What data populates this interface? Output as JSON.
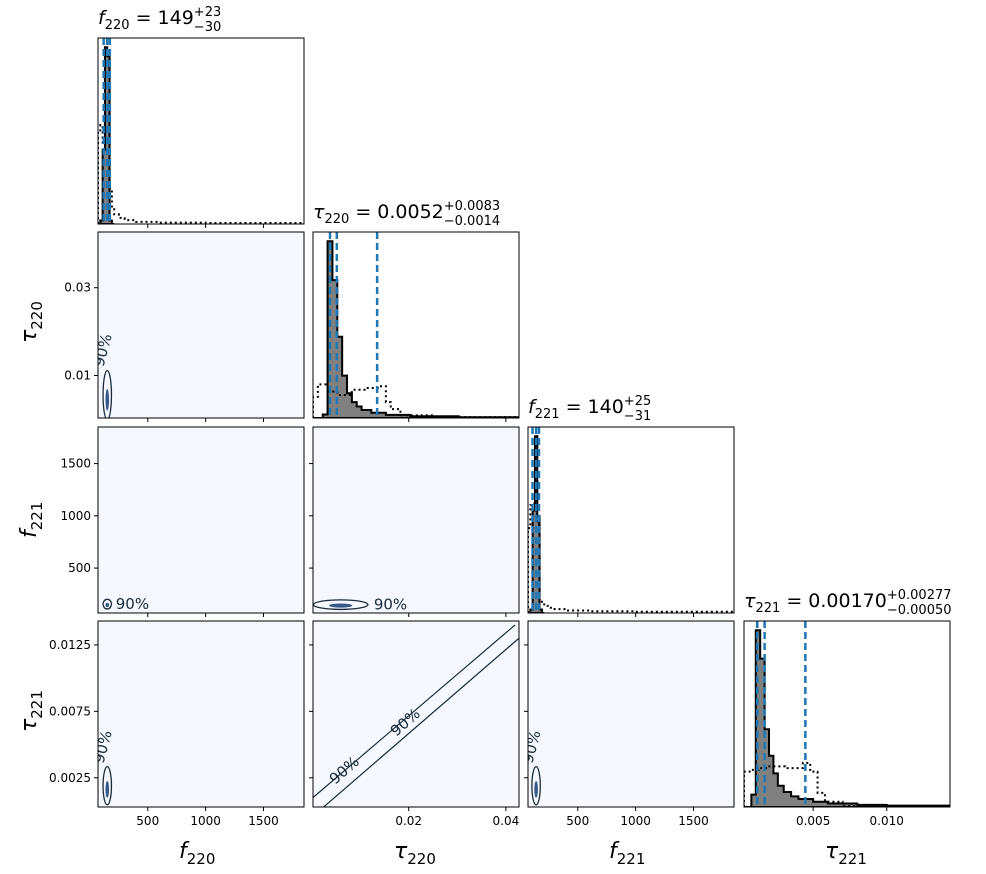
{
  "colors": {
    "hist_fill": "#808080",
    "hist_edge": "#000000",
    "prior": "#000000",
    "quantile": "#1f77b4",
    "panel_bg": "#f5f9ff",
    "contour": "#1a2a3a",
    "contour_fill": "#08306b"
  },
  "chart_data": {
    "type": "corner",
    "parameters": [
      {
        "key": "f220",
        "symbol": "f",
        "subscript": "220",
        "range": [
          70,
          1850
        ],
        "ticks": [
          {
            "v": 500,
            "label": "500"
          },
          {
            "v": 1000,
            "label": "1000"
          },
          {
            "v": 1500,
            "label": "1500"
          }
        ],
        "title": {
          "median": "149",
          "plus": "+23",
          "minus": "−30"
        },
        "quantiles": [
          119,
          149,
          172
        ],
        "posterior_hist": {
          "bin_edges": [
            70,
            90,
            110,
            130,
            150,
            170,
            190,
            210
          ],
          "counts": [
            0,
            0.02,
            0.42,
            1.0,
            0.95,
            0.02,
            0
          ]
        },
        "prior_hist": {
          "bin_edges": [
            70,
            90,
            110,
            130,
            150,
            170,
            190,
            210,
            250,
            300,
            400,
            600,
            1000,
            1850
          ],
          "counts": [
            0.53,
            0.56,
            0.45,
            0.88,
            0.95,
            0.2,
            0.09,
            0.055,
            0.035,
            0.022,
            0.012,
            0.008,
            0.006
          ]
        }
      },
      {
        "key": "tau220",
        "symbol": "τ",
        "subscript": "220",
        "range": [
          0.0003,
          0.0427
        ],
        "ticks": [
          {
            "v": 0.01,
            "label": "0.01"
          },
          {
            "v": 0.03,
            "label": "0.03"
          }
        ],
        "xticks": [
          {
            "v": 0.02,
            "label": "0.02"
          },
          {
            "v": 0.04,
            "label": "0.04"
          }
        ],
        "title": {
          "median": "0.0052",
          "plus": "+0.0083",
          "minus": "−0.0014"
        },
        "quantiles": [
          0.0038,
          0.0052,
          0.0135
        ],
        "posterior_hist": {
          "bin_edges": [
            0.0003,
            0.0023,
            0.0033,
            0.0043,
            0.0053,
            0.0063,
            0.0073,
            0.0083,
            0.0093,
            0.0103,
            0.0123,
            0.0153,
            0.0203,
            0.0303,
            0.0427
          ],
          "counts": [
            0,
            0.02,
            1.0,
            0.78,
            0.46,
            0.24,
            0.14,
            0.09,
            0.065,
            0.045,
            0.03,
            0.018,
            0.01,
            0.004
          ]
        },
        "prior_hist": {
          "bin_edges": [
            0.0003,
            0.0013,
            0.0033,
            0.0053,
            0.0083,
            0.0113,
            0.0143,
            0.0153,
            0.0163,
            0.0183,
            0.0253,
            0.0427
          ],
          "counts": [
            0.12,
            0.19,
            0.15,
            0.13,
            0.16,
            0.17,
            0.18,
            0.09,
            0.05,
            0.015,
            0.005
          ]
        }
      },
      {
        "key": "f221",
        "symbol": "f",
        "subscript": "221",
        "range": [
          70,
          1850
        ],
        "ticks": [
          {
            "v": 500,
            "label": "500"
          },
          {
            "v": 1000,
            "label": "1000"
          },
          {
            "v": 1500,
            "label": "1500"
          }
        ],
        "yticks": [
          {
            "v": 500,
            "label": "500"
          },
          {
            "v": 1000,
            "label": "1000"
          },
          {
            "v": 1500,
            "label": "1500"
          }
        ],
        "title": {
          "median": "140",
          "plus": "+25",
          "minus": "−31"
        },
        "quantiles": [
          109,
          140,
          165
        ],
        "posterior_hist": {
          "bin_edges": [
            70,
            90,
            110,
            130,
            150,
            170,
            190,
            210
          ],
          "counts": [
            0,
            0.02,
            0.58,
            1.0,
            0.55,
            0.02,
            0
          ]
        },
        "prior_hist": {
          "bin_edges": [
            70,
            90,
            110,
            130,
            150,
            170,
            190,
            210,
            250,
            300,
            400,
            600,
            1000,
            1850
          ],
          "counts": [
            0.48,
            0.61,
            0.62,
            1.0,
            0.5,
            0.07,
            0.055,
            0.04,
            0.03,
            0.022,
            0.014,
            0.01,
            0.007
          ]
        }
      },
      {
        "key": "tau221",
        "symbol": "τ",
        "subscript": "221",
        "range": [
          0.0003,
          0.0143
        ],
        "ticks": [
          {
            "v": 0.0025,
            "label": "0.0025"
          },
          {
            "v": 0.0075,
            "label": "0.0075"
          },
          {
            "v": 0.0125,
            "label": "0.0125"
          }
        ],
        "xticks": [
          {
            "v": 0.005,
            "label": "0.005"
          },
          {
            "v": 0.01,
            "label": "0.010"
          }
        ],
        "title": {
          "median": "0.00170",
          "plus": "+0.00277",
          "minus": "−0.00050"
        },
        "quantiles": [
          0.0012,
          0.0017,
          0.00447
        ],
        "posterior_hist": {
          "bin_edges": [
            0.0003,
            0.0008,
            0.0011,
            0.0014,
            0.0017,
            0.002,
            0.0023,
            0.0026,
            0.003,
            0.0035,
            0.004,
            0.005,
            0.006,
            0.008,
            0.01,
            0.0143
          ],
          "counts": [
            0,
            0.07,
            1.0,
            0.84,
            0.44,
            0.29,
            0.19,
            0.12,
            0.085,
            0.06,
            0.045,
            0.03,
            0.02,
            0.012,
            0.008
          ]
        },
        "prior_hist": {
          "bin_edges": [
            0.0003,
            0.0008,
            0.0013,
            0.0019,
            0.0025,
            0.0031,
            0.0037,
            0.0043,
            0.0048,
            0.0053,
            0.0058,
            0.007,
            0.0143
          ],
          "counts": [
            0.2,
            0.21,
            0.22,
            0.23,
            0.23,
            0.22,
            0.22,
            0.25,
            0.2,
            0.08,
            0.03,
            0.006
          ]
        }
      }
    ],
    "contours": [
      {
        "x": "f220",
        "y": "tau220",
        "level": "90%",
        "cx": 150,
        "cy": 0.0055,
        "sx": 25,
        "sy": 0.0035
      },
      {
        "x": "f220",
        "y": "f221",
        "level": "90%",
        "cx": 150,
        "cy": 155,
        "sx": 18,
        "sy": 18
      },
      {
        "x": "tau220",
        "y": "f221",
        "level": "90%",
        "cx": 0.006,
        "cy": 150,
        "sx": 0.004,
        "sy": 25
      },
      {
        "x": "f220",
        "y": "tau221",
        "level": "90%",
        "cx": 150,
        "cy": 0.0019,
        "sx": 25,
        "sy": 0.0009
      },
      {
        "x": "tau220",
        "y": "tau221",
        "level": "90%",
        "diagonal": true
      },
      {
        "x": "f221",
        "y": "tau221",
        "level": "90%",
        "cx": 140,
        "cy": 0.0019,
        "sx": 25,
        "sy": 0.0009
      }
    ]
  }
}
